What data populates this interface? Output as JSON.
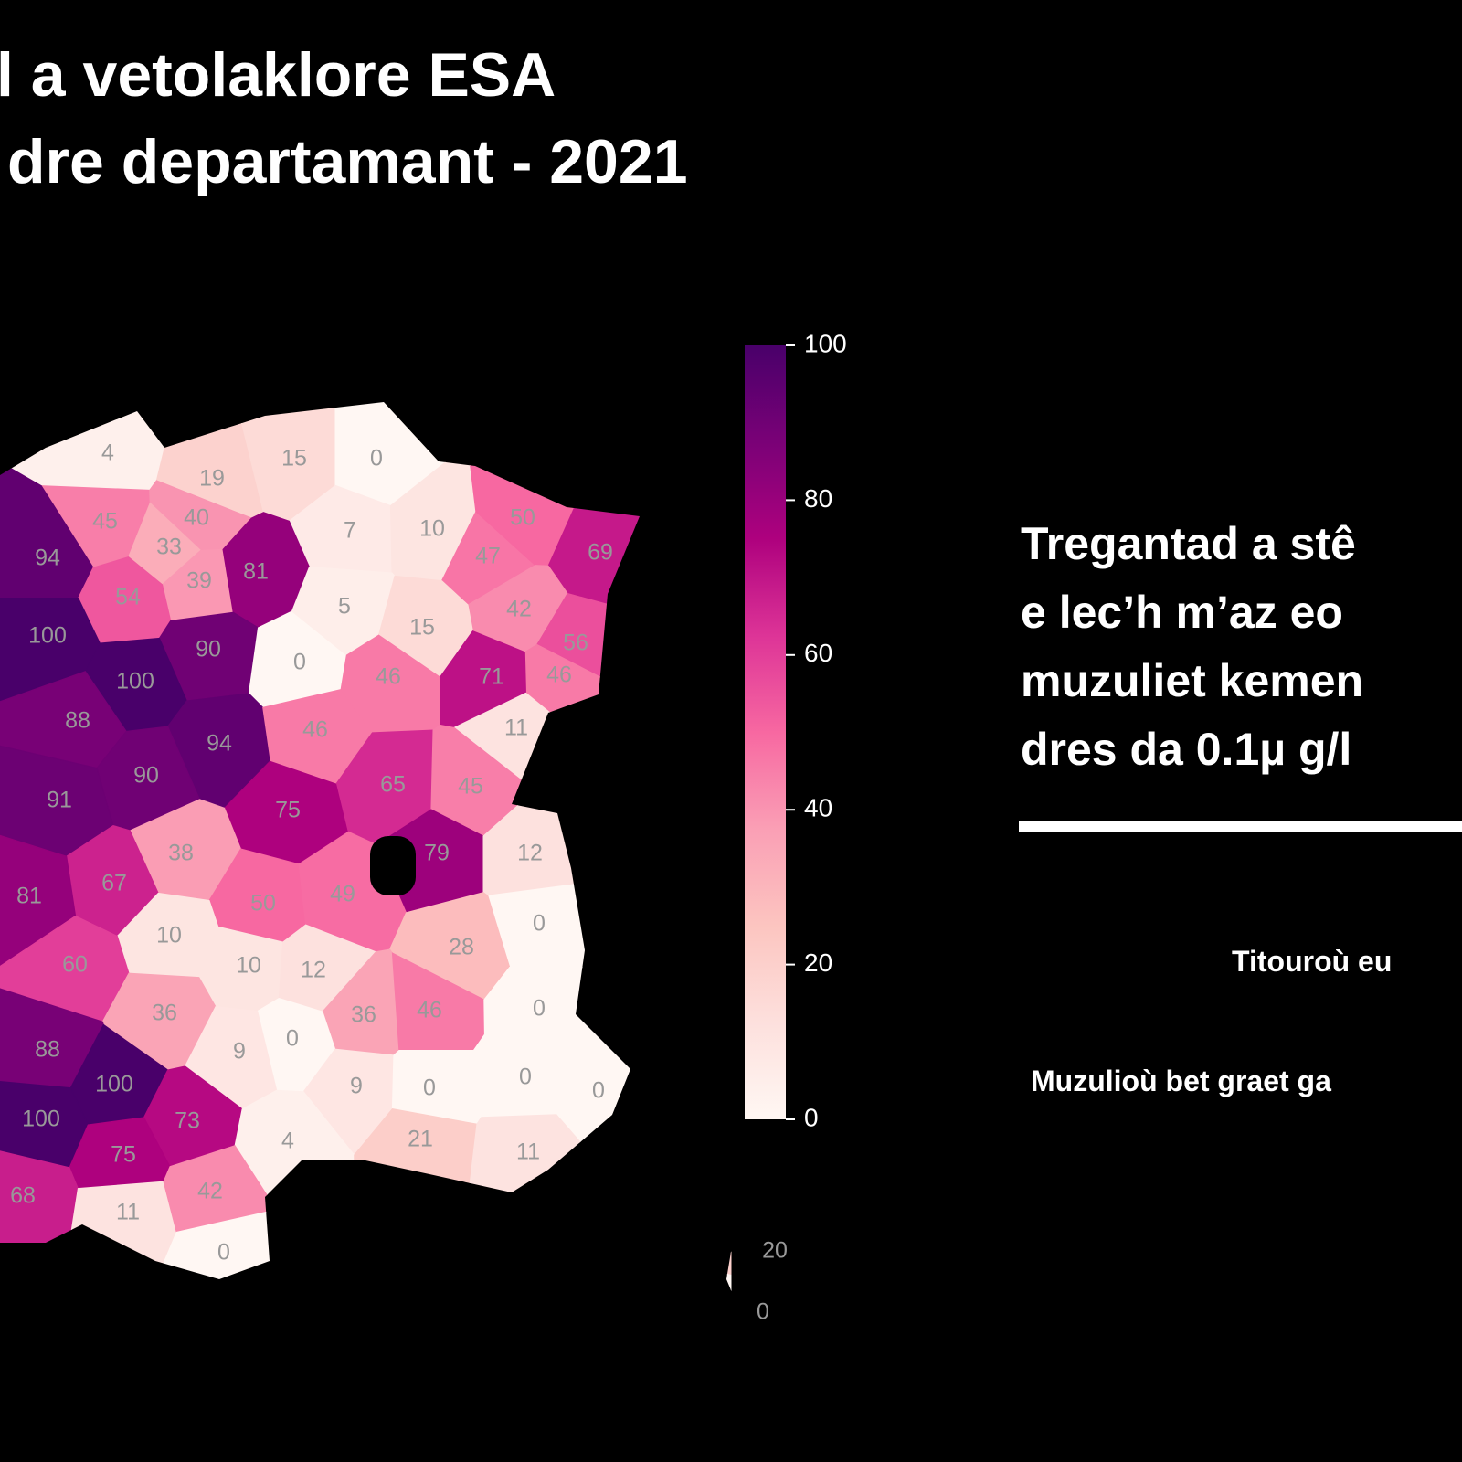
{
  "title": {
    "lines": [
      "l a vetolaklore ESA",
      "dre departamant - 2021"
    ]
  },
  "side_text": {
    "lines": [
      "Tregantad a stê",
      "e lec’h m’az eo",
      "muzuliet kemen",
      "dres da 0.1µ g/l"
    ]
  },
  "notes": [
    "Titouroù eu",
    "Muzulioù bet graet ga"
  ],
  "map": {
    "mainland": [
      4,
      19,
      15,
      0,
      7,
      10,
      47,
      50,
      69,
      42,
      56,
      46,
      45,
      40,
      33,
      39,
      81,
      94,
      54,
      100,
      90,
      100,
      0,
      5,
      15,
      88,
      94,
      90,
      91,
      75,
      46,
      46,
      71,
      11,
      65,
      45,
      38,
      79,
      12,
      67,
      81,
      50,
      49,
      0,
      10,
      28,
      10,
      12,
      60,
      36,
      36,
      46,
      0,
      0,
      88,
      9,
      100,
      9,
      0,
      0,
      0,
      100,
      73,
      75,
      4,
      21,
      11,
      68,
      11,
      42,
      0
    ],
    "corsica": [
      20,
      0
    ]
  },
  "colorbar": {
    "lim": [
      0,
      100
    ],
    "ticks": [
      0,
      20,
      40,
      60,
      80,
      100
    ],
    "colormap": [
      "#fff7f3",
      "#fde0dd",
      "#fcc5c0",
      "#fa9fb5",
      "#f768a1",
      "#dd3497",
      "#ae017e",
      "#7a0177",
      "#49006a"
    ]
  }
}
